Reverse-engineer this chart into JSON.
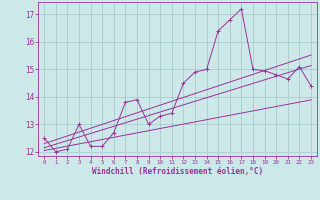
{
  "xlabel": "Windchill (Refroidissement éolien,°C)",
  "background_color": "#cce8e8",
  "grid_color": "#aacccc",
  "line_color": "#993399",
  "x_data": [
    0,
    1,
    2,
    3,
    4,
    5,
    6,
    7,
    8,
    9,
    10,
    11,
    12,
    13,
    14,
    15,
    16,
    17,
    18,
    19,
    20,
    21,
    22,
    23
  ],
  "y_data1": [
    12.5,
    12.0,
    12.1,
    13.0,
    12.2,
    12.2,
    12.7,
    13.8,
    13.9,
    13.0,
    13.3,
    13.4,
    14.5,
    14.9,
    15.0,
    16.4,
    16.8,
    17.2,
    15.0,
    14.95,
    14.8,
    14.65,
    15.1,
    14.4
  ],
  "y_line1": [
    12.15,
    12.28,
    12.41,
    12.54,
    12.67,
    12.8,
    12.93,
    13.06,
    13.19,
    13.32,
    13.45,
    13.58,
    13.71,
    13.84,
    13.97,
    14.1,
    14.23,
    14.36,
    14.49,
    14.62,
    14.75,
    14.88,
    15.01,
    15.14
  ],
  "y_line2": [
    12.3,
    12.44,
    12.58,
    12.72,
    12.86,
    13.0,
    13.14,
    13.28,
    13.42,
    13.56,
    13.7,
    13.84,
    13.98,
    14.12,
    14.26,
    14.4,
    14.54,
    14.68,
    14.82,
    14.96,
    15.1,
    15.24,
    15.38,
    15.52
  ],
  "y_line3": [
    12.05,
    12.13,
    12.21,
    12.29,
    12.37,
    12.45,
    12.53,
    12.61,
    12.69,
    12.77,
    12.85,
    12.93,
    13.01,
    13.09,
    13.17,
    13.25,
    13.33,
    13.41,
    13.49,
    13.57,
    13.65,
    13.73,
    13.81,
    13.89
  ],
  "ylim": [
    11.85,
    17.45
  ],
  "xlim": [
    -0.5,
    23.5
  ],
  "yticks": [
    12,
    13,
    14,
    15,
    16,
    17
  ],
  "xticks": [
    0,
    1,
    2,
    3,
    4,
    5,
    6,
    7,
    8,
    9,
    10,
    11,
    12,
    13,
    14,
    15,
    16,
    17,
    18,
    19,
    20,
    21,
    22,
    23
  ]
}
